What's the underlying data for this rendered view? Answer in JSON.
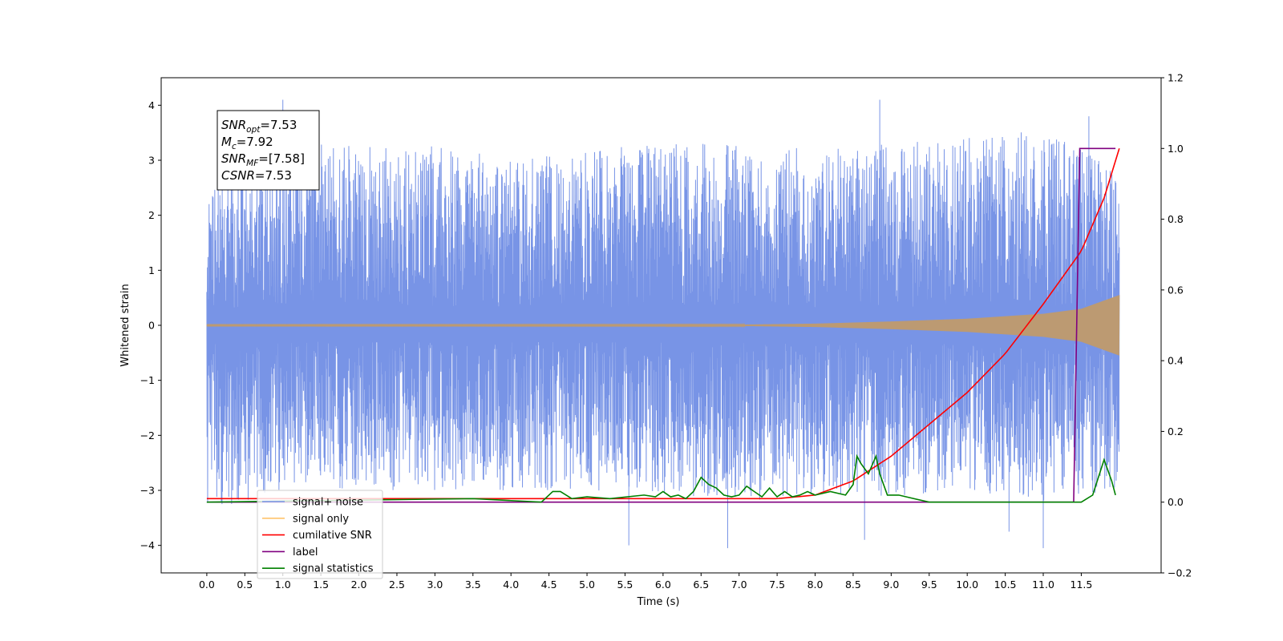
{
  "chart_data": {
    "type": "line",
    "xlabel": "Time (s)",
    "ylabel": "Whitened strain",
    "xlim": [
      -0.6,
      12.55
    ],
    "ylim": [
      -4.5,
      4.5
    ],
    "ylim_right": [
      -0.2,
      1.2
    ],
    "x_ticks": [
      0.0,
      0.5,
      1.0,
      1.5,
      2.0,
      2.5,
      3.0,
      3.5,
      4.0,
      4.5,
      5.0,
      5.5,
      6.0,
      6.5,
      7.0,
      7.5,
      8.0,
      8.5,
      9.0,
      9.5,
      10.0,
      10.5,
      11.0,
      11.5
    ],
    "x_tick_labels": [
      "0.0",
      "0.5",
      "1.0",
      "1.5",
      "2.0",
      "2.5",
      "3.0",
      "3.5",
      "4.0",
      "4.5",
      "5.0",
      "5.5",
      "6.0",
      "6.5",
      "7.0",
      "7.5",
      "8.0",
      "8.5",
      "9.0",
      "9.5",
      "10.0",
      "10.5",
      "11.0",
      "11.5"
    ],
    "y_ticks": [
      -4,
      -3,
      -2,
      -1,
      0,
      1,
      2,
      3,
      4
    ],
    "y_tick_labels": [
      "−4",
      "−3",
      "−2",
      "−1",
      "0",
      "1",
      "2",
      "3",
      "4"
    ],
    "y_right_ticks": [
      -0.2,
      0.0,
      0.2,
      0.4,
      0.6,
      0.8,
      1.0,
      1.2
    ],
    "y_right_tick_labels": [
      "−0.2",
      "0.0",
      "0.2",
      "0.4",
      "0.6",
      "0.8",
      "1.0",
      "1.2"
    ],
    "grid": false,
    "legend_position": "bottom-left",
    "annotation": {
      "lines": [
        {
          "main": "SNR",
          "sub": "opt",
          "rest": "=7.53"
        },
        {
          "main": "M",
          "sub": "c",
          "rest": "=7.92"
        },
        {
          "main": "SNR",
          "sub": "MF",
          "rest": "=[7.58]"
        },
        {
          "main": "CSNR",
          "sub": "",
          "rest": "=7.53"
        }
      ]
    },
    "series": [
      {
        "name": "signal+ noise",
        "color": "#7894e6",
        "axis": "left",
        "x_range": [
          0.0,
          12.0
        ],
        "envelope_upper": [
          [
            0.0,
            2.4
          ],
          [
            1.0,
            3.6
          ],
          [
            2.0,
            3.3
          ],
          [
            3.0,
            3.3
          ],
          [
            4.0,
            3.0
          ],
          [
            5.0,
            3.2
          ],
          [
            6.0,
            3.3
          ],
          [
            7.0,
            3.3
          ],
          [
            8.0,
            3.2
          ],
          [
            9.0,
            3.3
          ],
          [
            10.0,
            3.4
          ],
          [
            11.0,
            3.6
          ],
          [
            12.0,
            2.8
          ]
        ],
        "envelope_lower": [
          [
            0.0,
            -3.4
          ],
          [
            1.0,
            -3.0
          ],
          [
            2.0,
            -3.0
          ],
          [
            3.0,
            -3.0
          ],
          [
            4.0,
            -3.0
          ],
          [
            5.0,
            -3.0
          ],
          [
            6.0,
            -3.1
          ],
          [
            7.0,
            -3.2
          ],
          [
            8.0,
            -3.1
          ],
          [
            9.0,
            -3.1
          ],
          [
            10.0,
            -3.0
          ],
          [
            11.0,
            -3.2
          ],
          [
            12.0,
            -3.0
          ]
        ],
        "peaks": [
          [
            1.0,
            4.1
          ],
          [
            8.85,
            4.1
          ],
          [
            11.6,
            3.8
          ],
          [
            5.55,
            -4.0
          ],
          [
            6.85,
            -4.05
          ],
          [
            8.65,
            -3.9
          ],
          [
            11.0,
            -4.05
          ],
          [
            10.55,
            -3.75
          ],
          [
            0.2,
            -3.25
          ]
        ]
      },
      {
        "name": "signal only",
        "color": "#bc9a72",
        "axis": "left",
        "x_range": [
          0.0,
          12.0
        ],
        "amplitude": [
          [
            0.0,
            0.01
          ],
          [
            7.0,
            0.012
          ],
          [
            8.0,
            0.03
          ],
          [
            9.0,
            0.07
          ],
          [
            10.0,
            0.12
          ],
          [
            11.0,
            0.21
          ],
          [
            11.5,
            0.3
          ],
          [
            12.0,
            0.55
          ]
        ]
      },
      {
        "name": "cumilative SNR",
        "color": "#ff0000",
        "axis": "right",
        "x": [
          0.0,
          7.5,
          8.0,
          8.5,
          9.0,
          9.5,
          10.0,
          10.5,
          11.0,
          11.5,
          11.8,
          12.0
        ],
        "y": [
          0.01,
          0.01,
          0.02,
          0.06,
          0.13,
          0.22,
          0.31,
          0.42,
          0.56,
          0.71,
          0.86,
          1.0
        ]
      },
      {
        "name": "label",
        "color": "#800080",
        "axis": "right",
        "x": [
          0.0,
          11.4,
          11.48,
          11.5,
          11.95
        ],
        "y": [
          0.0,
          0.0,
          1.0,
          1.0,
          1.0
        ]
      },
      {
        "name": "signal statistics",
        "color": "#008000",
        "axis": "right",
        "x": [
          0.0,
          3.5,
          4.4,
          4.55,
          4.65,
          4.8,
          5.0,
          5.3,
          5.75,
          5.9,
          6.0,
          6.1,
          6.2,
          6.3,
          6.4,
          6.5,
          6.6,
          6.7,
          6.8,
          6.9,
          7.0,
          7.1,
          7.2,
          7.3,
          7.4,
          7.5,
          7.6,
          7.7,
          7.8,
          7.9,
          8.0,
          8.2,
          8.4,
          8.5,
          8.55,
          8.6,
          8.7,
          8.8,
          8.85,
          8.95,
          9.1,
          9.5,
          11.5,
          11.65,
          11.8,
          11.9,
          11.95
        ],
        "y": [
          0.0,
          0.01,
          0.0,
          0.03,
          0.03,
          0.01,
          0.015,
          0.01,
          0.02,
          0.015,
          0.03,
          0.015,
          0.02,
          0.01,
          0.03,
          0.07,
          0.05,
          0.04,
          0.02,
          0.015,
          0.02,
          0.045,
          0.03,
          0.015,
          0.04,
          0.015,
          0.03,
          0.015,
          0.02,
          0.03,
          0.02,
          0.03,
          0.02,
          0.05,
          0.13,
          0.11,
          0.08,
          0.13,
          0.08,
          0.02,
          0.02,
          0.0,
          0.0,
          0.02,
          0.12,
          0.06,
          0.02
        ]
      }
    ],
    "legend": [
      {
        "label": "signal+ noise",
        "color": "#7894e6"
      },
      {
        "label": "signal only",
        "color": "#ffc36b"
      },
      {
        "label": "cumilative SNR",
        "color": "#ff0000"
      },
      {
        "label": "label",
        "color": "#800080"
      },
      {
        "label": "signal statistics",
        "color": "#008000"
      }
    ]
  }
}
